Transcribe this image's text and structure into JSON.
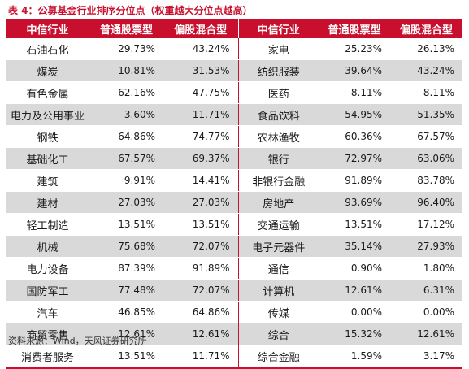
{
  "title": "表 4：公募基金行业排序分位点（权重越大分位点越高）",
  "headers": [
    "中信行业",
    "普通股票型",
    "偏股混合型",
    "中信行业",
    "普通股票型",
    "偏股混合型"
  ],
  "rows": [
    [
      "石油石化",
      "29.73%",
      "43.24%",
      "家电",
      "25.23%",
      "26.13%"
    ],
    [
      "煤炭",
      "10.81%",
      "31.53%",
      "纺织服装",
      "39.64%",
      "43.24%"
    ],
    [
      "有色金属",
      "62.16%",
      "47.75%",
      "医药",
      "8.11%",
      "8.11%"
    ],
    [
      "电力及公用事业",
      "3.60%",
      "11.71%",
      "食品饮料",
      "54.95%",
      "51.35%"
    ],
    [
      "钢铁",
      "64.86%",
      "74.77%",
      "农林渔牧",
      "60.36%",
      "67.57%"
    ],
    [
      "基础化工",
      "67.57%",
      "69.37%",
      "银行",
      "72.97%",
      "63.06%"
    ],
    [
      "建筑",
      "9.91%",
      "14.41%",
      "非银行金融",
      "91.89%",
      "83.78%"
    ],
    [
      "建材",
      "27.03%",
      "27.03%",
      "房地产",
      "93.69%",
      "96.40%"
    ],
    [
      "轻工制造",
      "13.51%",
      "13.51%",
      "交通运输",
      "13.51%",
      "17.12%"
    ],
    [
      "机械",
      "75.68%",
      "72.07%",
      "电子元器件",
      "35.14%",
      "27.93%"
    ],
    [
      "电力设备",
      "87.39%",
      "91.89%",
      "通信",
      "0.90%",
      "1.80%"
    ],
    [
      "国防军工",
      "77.48%",
      "72.07%",
      "计算机",
      "12.61%",
      "6.31%"
    ],
    [
      "汽车",
      "46.85%",
      "64.86%",
      "传媒",
      "0.00%",
      "0.00%"
    ],
    [
      "商贸零售",
      "12.61%",
      "12.61%",
      "综合",
      "15.32%",
      "12.61%"
    ],
    [
      "消费者服务",
      "13.51%",
      "11.71%",
      "综合金融",
      "1.59%",
      "3.17%"
    ]
  ],
  "source": "资料来源：Wind，天风证券研究所",
  "colors": {
    "accent": "#c8102e",
    "stripe": "#d9d9d9"
  }
}
